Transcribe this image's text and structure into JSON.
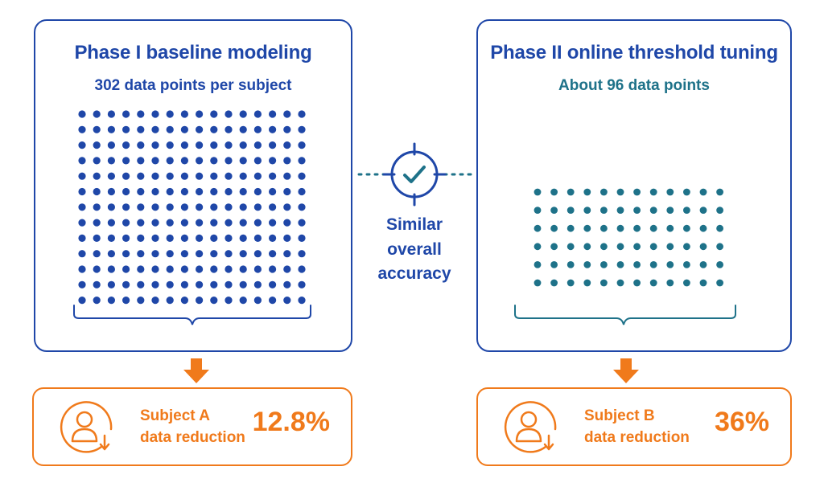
{
  "phase1": {
    "title": "Phase I baseline modeling",
    "subtitle": "302 data points per subject",
    "dot_color": "#1f47a8"
  },
  "phase2": {
    "title": "Phase II online threshold tuning",
    "subtitle": "About 96 data points",
    "dot_color": "#1e7289"
  },
  "center": {
    "icon": "target-check-icon",
    "line1": "Similar",
    "line2": "overall",
    "line3": "accuracy"
  },
  "resultA": {
    "icon": "person-down-icon",
    "line1": "Subject A",
    "line2": "data reduction",
    "value": "12.8%"
  },
  "resultB": {
    "icon": "person-down-icon",
    "line1": "Subject B",
    "line2": "data reduction",
    "value": "36%"
  },
  "colors": {
    "primary": "#1f47a8",
    "teal": "#1e7289",
    "accent": "#f07a1b"
  }
}
